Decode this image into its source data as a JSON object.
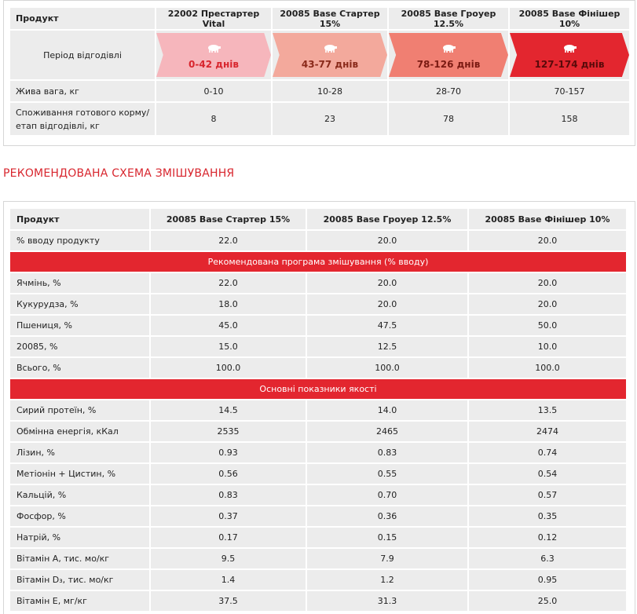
{
  "table1": {
    "header": [
      "Продукт",
      "22002 Престартер Vital",
      "20085 Base Стартер 15%",
      "20085 Base Гроуер 12.5%",
      "20085 Base Фінішер 10%"
    ],
    "period_label": "Період відгодівлі",
    "periods": [
      {
        "days": "0-42 днів",
        "color": "#f6b6bc",
        "text_color": "#d8262e"
      },
      {
        "days": "43-77 днів",
        "color": "#f3a99c",
        "text_color": "#8a2a1a"
      },
      {
        "days": "78-126 днів",
        "color": "#f07f72",
        "text_color": "#7a1a12"
      },
      {
        "days": "127-174 днів",
        "color": "#e3262f",
        "text_color": "#5a0a0a"
      }
    ],
    "weight": {
      "label": "Жива вага, кг",
      "values": [
        "0-10",
        "10-28",
        "28-70",
        "70-157"
      ]
    },
    "consumption": {
      "label_line1": "Споживання готового корму/",
      "label_line2": "етап відгодівлі, кг",
      "values": [
        "8",
        "23",
        "78",
        "158"
      ]
    }
  },
  "section_title": "РЕКОМЕНДОВАНА СХЕМА ЗМІШУВАННЯ",
  "table2": {
    "header": [
      "Продукт",
      "20085 Base Стартер 15%",
      "20085 Base Гроуер 12.5%",
      "20085 Base Фінішер 10%"
    ],
    "input_row": {
      "label": "% вводу продукту",
      "values": [
        "22.0",
        "20.0",
        "20.0"
      ]
    },
    "band1": "Рекомендована програма змішування (% вводу)",
    "mix_rows": [
      {
        "label": "Ячмінь, %",
        "values": [
          "22.0",
          "20.0",
          "20.0"
        ]
      },
      {
        "label": "Кукурудза, %",
        "values": [
          "18.0",
          "20.0",
          "20.0"
        ]
      },
      {
        "label": "Пшениця, %",
        "values": [
          "45.0",
          "47.5",
          "50.0"
        ]
      },
      {
        "label": "20085, %",
        "values": [
          "15.0",
          "12.5",
          "10.0"
        ]
      },
      {
        "label": "Всього, %",
        "values": [
          "100.0",
          "100.0",
          "100.0"
        ]
      }
    ],
    "band2": "Основні показники якості",
    "quality_rows": [
      {
        "label": "Сирий протеїн, %",
        "values": [
          "14.5",
          "14.0",
          "13.5"
        ]
      },
      {
        "label": "Обмінна енергія, кКал",
        "values": [
          "2535",
          "2465",
          "2474"
        ]
      },
      {
        "label": "Лізин, %",
        "values": [
          "0.93",
          "0.83",
          "0.74"
        ]
      },
      {
        "label": "Метіонін + Цистин, %",
        "values": [
          "0.56",
          "0.55",
          "0.54"
        ]
      },
      {
        "label": "Кальцій, %",
        "values": [
          "0.83",
          "0.70",
          "0.57"
        ]
      },
      {
        "label": "Фосфор, %",
        "values": [
          "0.37",
          "0.36",
          "0.35"
        ]
      },
      {
        "label": "Натрій, %",
        "values": [
          "0.17",
          "0.15",
          "0.12"
        ]
      },
      {
        "label": "Вітамін А, тис. мо/кг",
        "values": [
          "9.5",
          "7.9",
          "6.3"
        ]
      },
      {
        "label": "Вітамін D₃, тис. мо/кг",
        "values": [
          "1.4",
          "1.2",
          "0.95"
        ]
      },
      {
        "label": "Вітамін Е, мг/кг",
        "values": [
          "37.5",
          "31.3",
          "25.0"
        ]
      }
    ]
  }
}
